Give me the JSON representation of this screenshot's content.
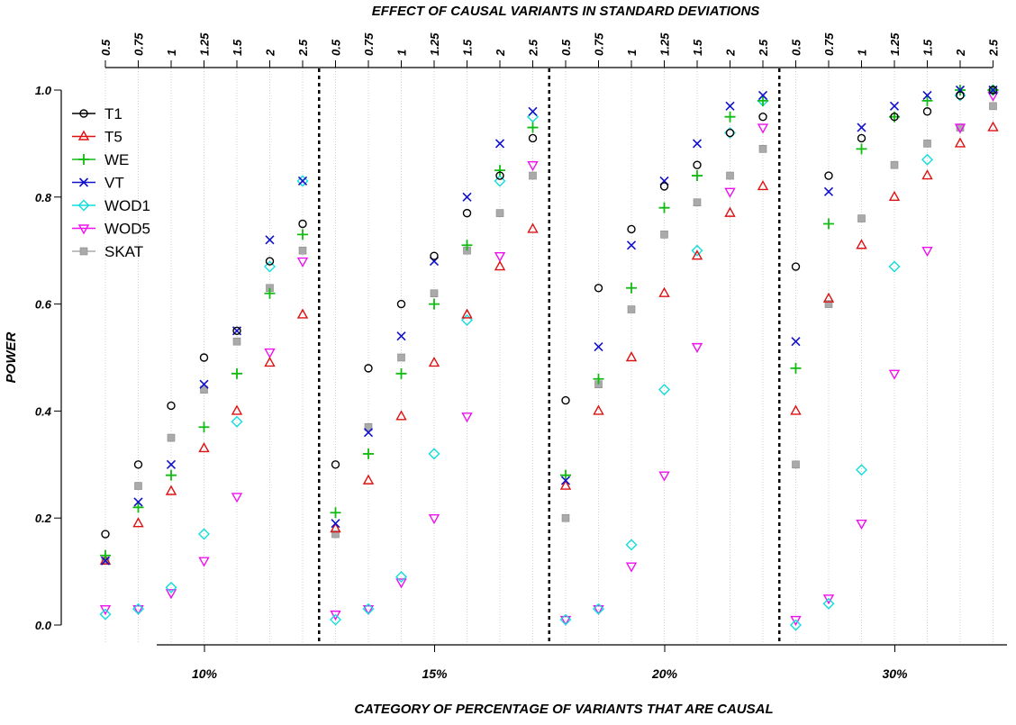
{
  "chart_data": {
    "type": "scatter",
    "title": "",
    "top_axis_label": "EFFECT OF CAUSAL VARIANTS IN STANDARD DEVIATIONS",
    "xlabel": "CATEGORY OF PERCENTAGE OF VARIANTS THAT ARE CAUSAL",
    "ylabel": "POWER",
    "ylim": [
      0.0,
      1.0
    ],
    "yticks": [
      "0.0",
      "0.2",
      "0.4",
      "0.6",
      "0.8",
      "1.0"
    ],
    "effect_sizes": [
      "0.5",
      "0.75",
      "1",
      "1.25",
      "1.5",
      "2",
      "2.5"
    ],
    "groups": [
      "10%",
      "15%",
      "20%",
      "30%"
    ],
    "grid": "vertical dotted",
    "legend_position": "top-left",
    "series": [
      {
        "name": "T1",
        "color": "#000000",
        "marker": "circle",
        "values": [
          [
            0.17,
            0.3,
            0.41,
            0.5,
            0.55,
            0.68,
            0.75
          ],
          [
            0.3,
            0.48,
            0.6,
            0.69,
            0.77,
            0.84,
            0.91
          ],
          [
            0.42,
            0.63,
            0.74,
            0.82,
            0.86,
            0.92,
            0.95
          ],
          [
            0.67,
            0.84,
            0.91,
            0.95,
            0.96,
            0.99,
            1.0
          ]
        ]
      },
      {
        "name": "T5",
        "color": "#dd1111",
        "marker": "triangle-up",
        "values": [
          [
            0.12,
            0.19,
            0.25,
            0.33,
            0.4,
            0.49,
            0.58
          ],
          [
            0.18,
            0.27,
            0.39,
            0.49,
            0.58,
            0.67,
            0.74
          ],
          [
            0.26,
            0.4,
            0.5,
            0.62,
            0.69,
            0.77,
            0.82
          ],
          [
            0.4,
            0.61,
            0.71,
            0.8,
            0.84,
            0.9,
            0.93
          ]
        ]
      },
      {
        "name": "WE",
        "color": "#11bb11",
        "marker": "plus",
        "values": [
          [
            0.13,
            0.22,
            0.28,
            0.37,
            0.47,
            0.62,
            0.73
          ],
          [
            0.21,
            0.32,
            0.47,
            0.6,
            0.71,
            0.85,
            0.93
          ],
          [
            0.28,
            0.46,
            0.63,
            0.78,
            0.84,
            0.95,
            0.98
          ],
          [
            0.48,
            0.75,
            0.89,
            0.95,
            0.98,
            1.0,
            1.0
          ]
        ]
      },
      {
        "name": "VT",
        "color": "#1111cc",
        "marker": "x",
        "values": [
          [
            0.12,
            0.23,
            0.3,
            0.45,
            0.55,
            0.72,
            0.83
          ],
          [
            0.19,
            0.36,
            0.54,
            0.68,
            0.8,
            0.9,
            0.96
          ],
          [
            0.27,
            0.52,
            0.71,
            0.83,
            0.9,
            0.97,
            0.99
          ],
          [
            0.53,
            0.81,
            0.93,
            0.97,
            0.99,
            1.0,
            1.0
          ]
        ]
      },
      {
        "name": "WOD1",
        "color": "#11dddd",
        "marker": "diamond",
        "values": [
          [
            0.02,
            0.03,
            0.07,
            0.17,
            0.38,
            0.67,
            0.83
          ],
          [
            0.01,
            0.03,
            0.09,
            0.32,
            0.57,
            0.83,
            0.95
          ],
          [
            0.01,
            0.03,
            0.15,
            0.44,
            0.7,
            0.92,
            0.98
          ],
          [
            0.0,
            0.04,
            0.29,
            0.67,
            0.87,
            0.99,
            1.0
          ]
        ]
      },
      {
        "name": "WOD5",
        "color": "#ee11ee",
        "marker": "triangle-down",
        "values": [
          [
            0.03,
            0.03,
            0.06,
            0.12,
            0.24,
            0.51,
            0.68
          ],
          [
            0.02,
            0.03,
            0.08,
            0.2,
            0.39,
            0.69,
            0.86
          ],
          [
            0.01,
            0.03,
            0.11,
            0.28,
            0.52,
            0.81,
            0.93
          ],
          [
            0.01,
            0.05,
            0.19,
            0.47,
            0.7,
            0.93,
            0.99
          ]
        ]
      },
      {
        "name": "SKAT",
        "color": "#aaaaaa",
        "marker": "square",
        "values": [
          [
            0.12,
            0.26,
            0.35,
            0.44,
            0.53,
            0.63,
            0.7
          ],
          [
            0.17,
            0.37,
            0.5,
            0.62,
            0.7,
            0.77,
            0.84
          ],
          [
            0.2,
            0.45,
            0.59,
            0.73,
            0.79,
            0.84,
            0.89
          ],
          [
            0.3,
            0.6,
            0.76,
            0.86,
            0.9,
            0.93,
            0.97
          ]
        ]
      }
    ]
  }
}
